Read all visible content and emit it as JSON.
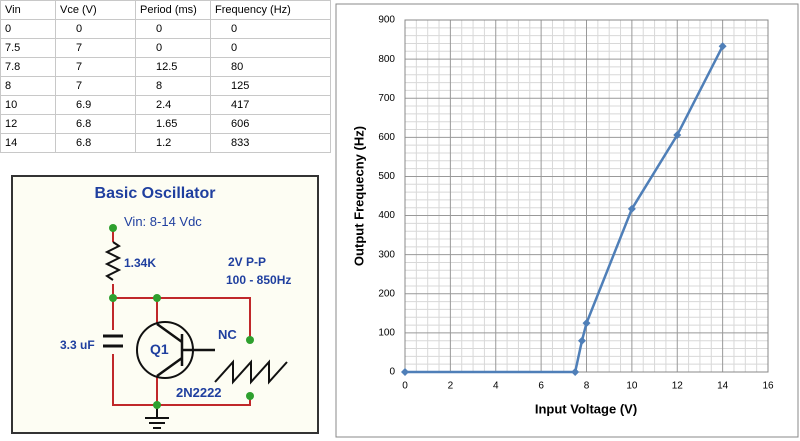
{
  "table": {
    "headers": [
      "Vin",
      "Vce (V)",
      "Period (ms)",
      "Frequency (Hz)"
    ],
    "rows": [
      [
        "0",
        "0",
        "0",
        "0"
      ],
      [
        "7.5",
        "7",
        "0",
        "0"
      ],
      [
        "7.8",
        "7",
        "12.5",
        "80"
      ],
      [
        "8",
        "7",
        "8",
        "125"
      ],
      [
        "10",
        "6.9",
        "2.4",
        "417"
      ],
      [
        "12",
        "6.8",
        "1.65",
        "606"
      ],
      [
        "14",
        "6.8",
        "1.2",
        "833"
      ]
    ]
  },
  "circuit": {
    "title": "Basic Oscillator",
    "vin": "Vin: 8-14 Vdc",
    "resistor": "1.34K",
    "amplitude": "2V P-P",
    "range": "100 - 850Hz",
    "capacitor": "3.3 uF",
    "transistor": "Q1",
    "nc": "NC",
    "part": "2N2222"
  },
  "chart_data": {
    "type": "line",
    "xlabel": "Input Voltage (V)",
    "ylabel": "Output Frequecny (Hz)",
    "x": [
      0,
      7.5,
      7.8,
      8,
      10,
      12,
      14
    ],
    "values": [
      0,
      0,
      80,
      125,
      417,
      606,
      833
    ],
    "color": "#4f7fb8",
    "xlim": [
      0,
      16
    ],
    "ylim": [
      0,
      900
    ],
    "xticks": [
      0,
      2,
      4,
      6,
      8,
      10,
      12,
      14,
      16
    ],
    "yticks": [
      0,
      100,
      200,
      300,
      400,
      500,
      600,
      700,
      800,
      900
    ],
    "grid": true,
    "minor_grid": true
  }
}
